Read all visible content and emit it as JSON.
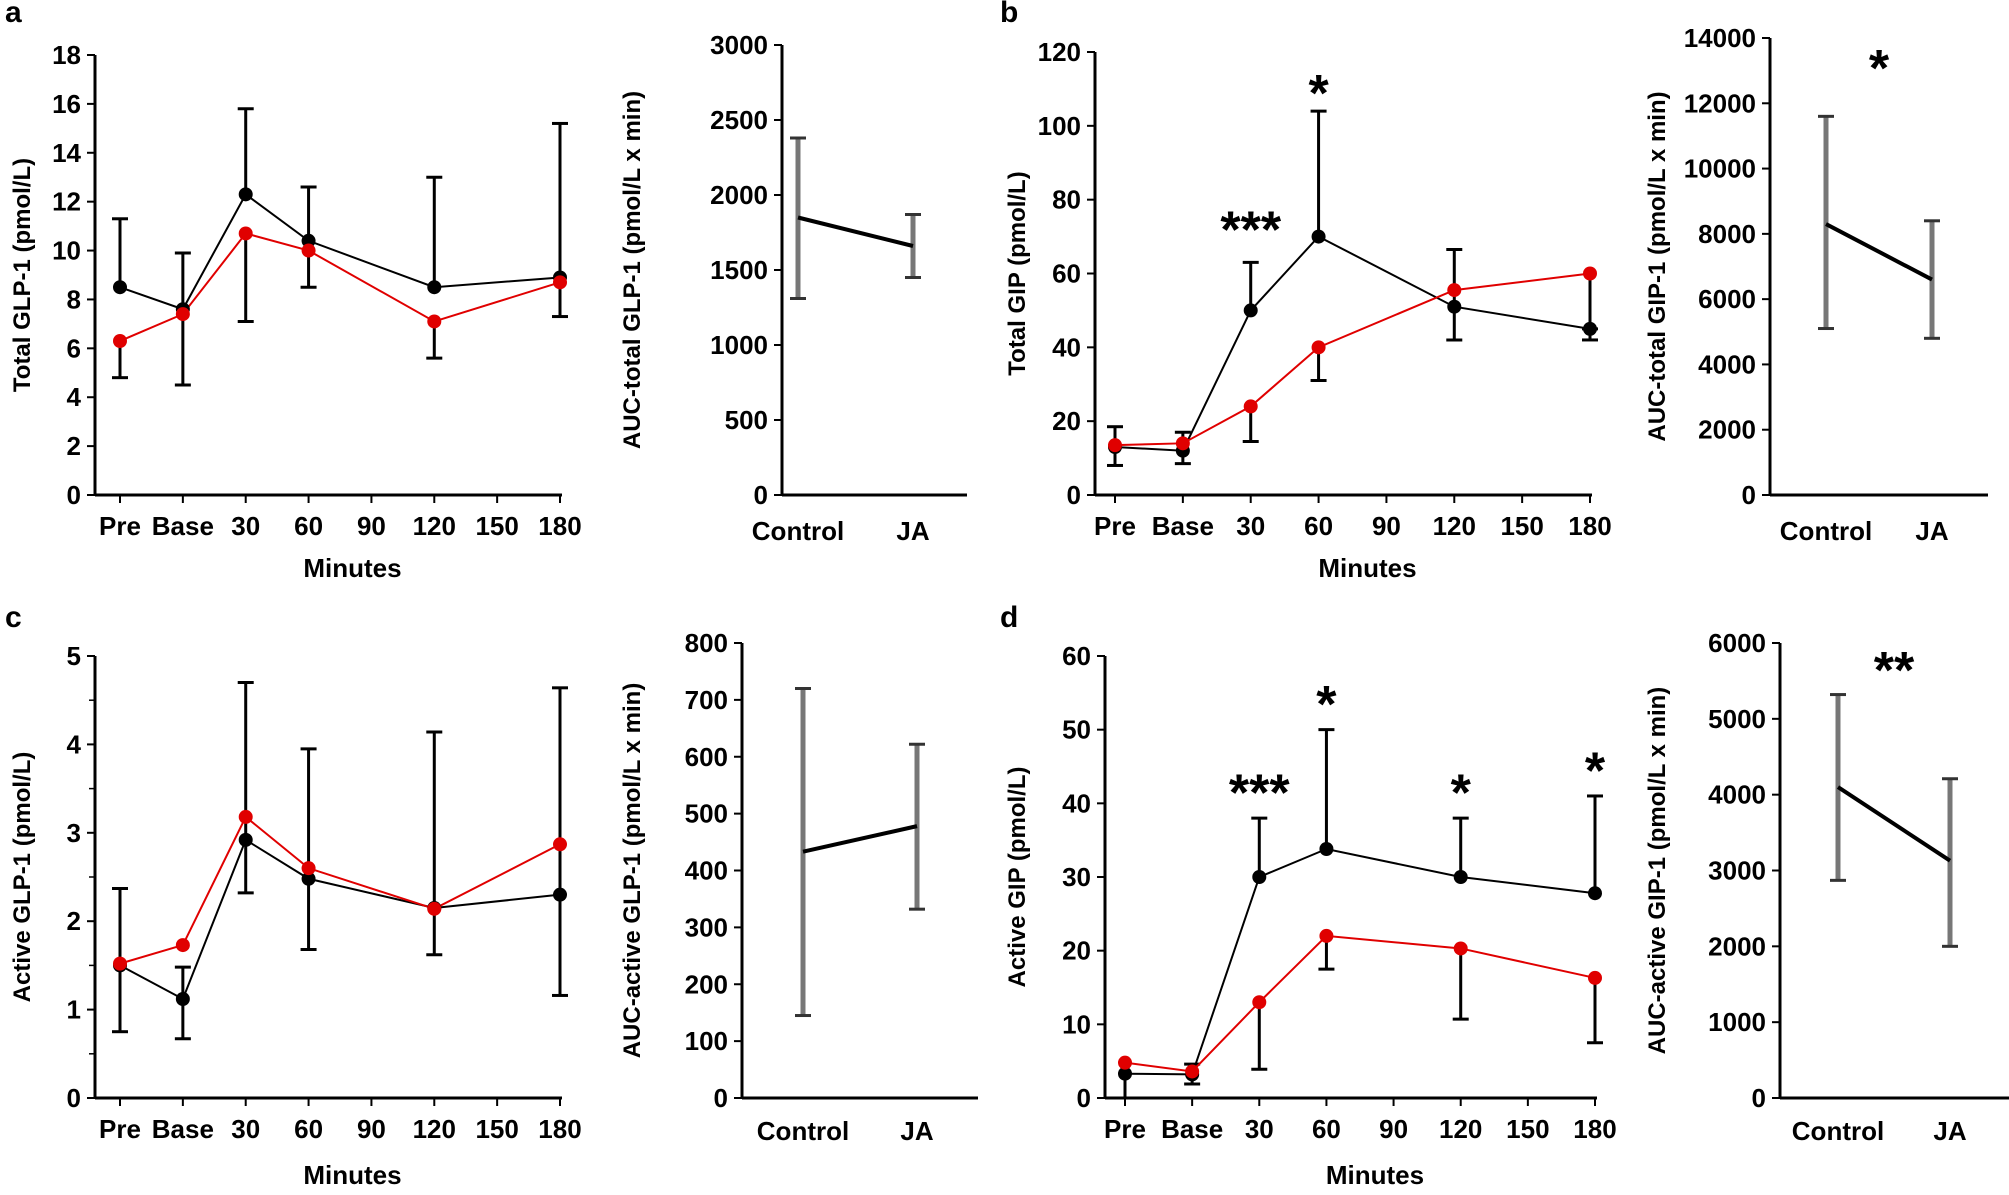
{
  "figure": {
    "colors": {
      "control": "#000000",
      "ja": "#e00000",
      "auc_error": "#777777",
      "axis": "#000000"
    },
    "series_names": {
      "control": "Control",
      "ja": "JA"
    }
  },
  "chart_data": [
    {
      "id": "a-time",
      "panel_letter": "a",
      "type": "line",
      "title": "",
      "xlabel": "Minutes",
      "ylabel": "Total GLP-1  (pmol/L)",
      "categories": [
        "Pre",
        "Base",
        "30",
        "60",
        "90",
        "120",
        "150",
        "180"
      ],
      "x_positions": [
        0,
        1,
        2,
        3,
        4,
        5,
        6,
        7
      ],
      "ylim": [
        0,
        18
      ],
      "yticks": [
        0,
        2,
        4,
        6,
        8,
        10,
        12,
        14,
        16,
        18
      ],
      "minor_yticks": [],
      "series": [
        {
          "name": "Control",
          "x": [
            0,
            1,
            2,
            3,
            5,
            7
          ],
          "values": [
            8.5,
            7.6,
            12.3,
            10.4,
            8.5,
            8.9
          ],
          "error_upper": [
            11.3,
            9.9,
            15.8,
            12.6,
            13.0,
            15.2
          ],
          "error_lower": [
            null,
            null,
            null,
            8.5,
            null,
            null
          ]
        },
        {
          "name": "JA",
          "x": [
            0,
            1,
            2,
            3,
            5,
            7
          ],
          "values": [
            6.3,
            7.4,
            10.7,
            10.0,
            7.1,
            8.7
          ],
          "error_upper": [
            null,
            null,
            null,
            null,
            null,
            null
          ],
          "error_lower": [
            4.8,
            4.5,
            7.1,
            null,
            5.6,
            7.3
          ]
        }
      ],
      "annotations": []
    },
    {
      "id": "a-auc",
      "type": "line",
      "title": "",
      "xlabel": "",
      "ylabel": "AUC-total  GLP-1  (pmol/L  x  min)",
      "categories": [
        "Control",
        "JA"
      ],
      "ylim": [
        0,
        3000
      ],
      "yticks": [
        0,
        500,
        1000,
        1500,
        2000,
        2500,
        3000
      ],
      "values": [
        1850,
        1660
      ],
      "error_upper": [
        2380,
        1870
      ],
      "error_lower": [
        1310,
        1450
      ],
      "annotations": []
    },
    {
      "id": "b-time",
      "panel_letter": "b",
      "type": "line",
      "title": "",
      "xlabel": "Minutes",
      "ylabel": "Total GIP  (pmol/L)",
      "categories": [
        "Pre",
        "Base",
        "30",
        "60",
        "90",
        "120",
        "150",
        "180"
      ],
      "x_positions": [
        0,
        1,
        2,
        3,
        4,
        5,
        6,
        7
      ],
      "ylim": [
        0,
        120
      ],
      "yticks": [
        0,
        20,
        40,
        60,
        80,
        100,
        120
      ],
      "minor_yticks": [],
      "series": [
        {
          "name": "Control",
          "x": [
            0,
            1,
            2,
            3,
            5,
            7
          ],
          "values": [
            13,
            12,
            50,
            70,
            51,
            45
          ],
          "error_upper": [
            18.5,
            17,
            63,
            104,
            66.5,
            null
          ],
          "error_lower": [
            null,
            8.5,
            null,
            null,
            42,
            42
          ]
        },
        {
          "name": "JA",
          "x": [
            0,
            1,
            2,
            3,
            5,
            7
          ],
          "values": [
            13.5,
            14,
            24,
            40,
            55.5,
            60
          ],
          "error_upper": [
            null,
            null,
            null,
            null,
            null,
            null
          ],
          "error_lower": [
            8,
            null,
            14.5,
            31,
            null,
            45
          ]
        }
      ],
      "annotations": [
        {
          "text": "***",
          "x": 2,
          "y": 73
        },
        {
          "text": "*",
          "x": 3,
          "y": 110
        }
      ]
    },
    {
      "id": "b-auc",
      "type": "line",
      "title": "",
      "xlabel": "",
      "ylabel": "AUC-total  GIP-1  (pmol/L  x  min)",
      "categories": [
        "Control",
        "JA"
      ],
      "ylim": [
        0,
        14000
      ],
      "yticks": [
        0,
        2000,
        4000,
        6000,
        8000,
        10000,
        12000,
        14000
      ],
      "values": [
        8300,
        6600
      ],
      "error_upper": [
        11600,
        8400
      ],
      "error_lower": [
        5100,
        4800
      ],
      "annotations": [
        {
          "text": "*",
          "x": 0.5,
          "y": 13200
        }
      ]
    },
    {
      "id": "c-time",
      "panel_letter": "c",
      "type": "line",
      "title": "",
      "xlabel": "Minutes",
      "ylabel": "Active GLP-1  (pmol/L)",
      "categories": [
        "Pre",
        "Base",
        "30",
        "60",
        "90",
        "120",
        "150",
        "180"
      ],
      "x_positions": [
        0,
        1,
        2,
        3,
        4,
        5,
        6,
        7
      ],
      "ylim": [
        0,
        5
      ],
      "yticks": [
        0,
        1,
        2,
        3,
        4,
        5
      ],
      "minor_yticks": [
        0.5,
        1.5,
        2.5,
        3.5,
        4.5
      ],
      "series": [
        {
          "name": "Control",
          "x": [
            0,
            1,
            2,
            3,
            5,
            7
          ],
          "values": [
            1.5,
            1.12,
            2.92,
            2.48,
            2.15,
            2.3
          ],
          "error_upper": [
            2.37,
            1.48,
            4.7,
            3.95,
            4.14,
            4.64
          ],
          "error_lower": [
            0.75,
            0.67,
            2.32,
            1.68,
            1.62,
            1.16
          ]
        },
        {
          "name": "JA",
          "x": [
            0,
            1,
            2,
            3,
            5,
            7
          ],
          "values": [
            1.52,
            1.73,
            3.18,
            2.6,
            2.14,
            2.87
          ],
          "error_upper": [
            null,
            null,
            null,
            null,
            null,
            null
          ],
          "error_lower": [
            null,
            null,
            null,
            null,
            null,
            null
          ]
        }
      ],
      "annotations": []
    },
    {
      "id": "c-auc",
      "type": "line",
      "title": "",
      "xlabel": "",
      "ylabel": "AUC-active  GLP-1  (pmol/L  x  min)",
      "categories": [
        "Control",
        "JA"
      ],
      "ylim": [
        0,
        800
      ],
      "yticks": [
        0,
        100,
        200,
        300,
        400,
        500,
        600,
        700,
        800
      ],
      "values": [
        433,
        478
      ],
      "error_upper": [
        720,
        622
      ],
      "error_lower": [
        145,
        332
      ],
      "annotations": []
    },
    {
      "id": "d-time",
      "panel_letter": "d",
      "type": "line",
      "title": "",
      "xlabel": "Minutes",
      "ylabel": "Active GIP  (pmol/L)",
      "categories": [
        "Pre",
        "Base",
        "30",
        "60",
        "90",
        "120",
        "150",
        "180"
      ],
      "x_positions": [
        0,
        1,
        2,
        3,
        4,
        5,
        6,
        7
      ],
      "ylim": [
        0,
        60
      ],
      "yticks": [
        0,
        10,
        20,
        30,
        40,
        50,
        60
      ],
      "minor_yticks": [],
      "series": [
        {
          "name": "Control",
          "x": [
            0,
            1,
            2,
            3,
            5,
            7
          ],
          "values": [
            3.3,
            3.2,
            30,
            33.8,
            30,
            27.8
          ],
          "error_upper": [
            null,
            4.6,
            38,
            50,
            38,
            41
          ],
          "error_lower": [
            0,
            1.9,
            null,
            null,
            null,
            null
          ]
        },
        {
          "name": "JA",
          "x": [
            0,
            1,
            2,
            3,
            5,
            7
          ],
          "values": [
            4.8,
            3.6,
            13,
            22,
            20.3,
            16.3
          ],
          "error_upper": [
            null,
            null,
            null,
            null,
            null,
            null
          ],
          "error_lower": [
            null,
            null,
            3.9,
            17.5,
            10.7,
            7.5
          ]
        }
      ],
      "annotations": [
        {
          "text": "***",
          "x": 2,
          "y": 42
        },
        {
          "text": "*",
          "x": 3,
          "y": 54
        },
        {
          "text": "*",
          "x": 5,
          "y": 42
        },
        {
          "text": "*",
          "x": 7,
          "y": 45
        }
      ]
    },
    {
      "id": "d-auc",
      "type": "line",
      "title": "",
      "xlabel": "",
      "ylabel": "AUC-active  GIP-1  (pmol/L  x  min)",
      "categories": [
        "Control",
        "JA"
      ],
      "ylim": [
        0,
        6000
      ],
      "yticks": [
        0,
        1000,
        2000,
        3000,
        4000,
        5000,
        6000
      ],
      "values": [
        4100,
        3130
      ],
      "error_upper": [
        5320,
        4210
      ],
      "error_lower": [
        2870,
        2000
      ],
      "annotations": [
        {
          "text": "**",
          "x": 0.5,
          "y": 5700
        }
      ]
    }
  ]
}
